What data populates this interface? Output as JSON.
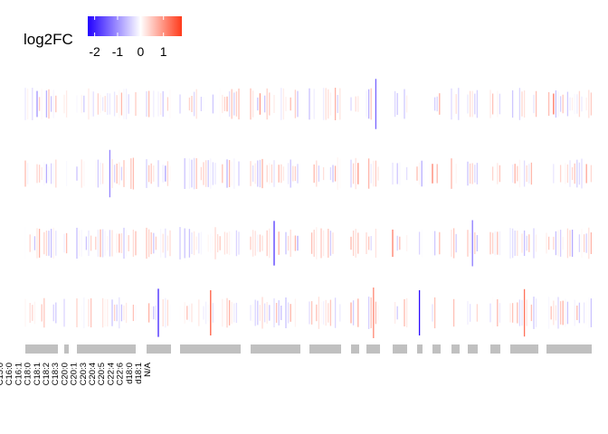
{
  "chart_data": {
    "type": "heatmap",
    "legend": {
      "title": "log2FC",
      "ticks": [
        "-2",
        "-1",
        "0",
        "1"
      ],
      "tick_values": [
        -2,
        -1,
        0,
        1
      ],
      "range": [
        -2.3,
        1.8
      ],
      "colors": {
        "low": "#2200ff",
        "mid": "#ffffff",
        "high": "#ff3a1a"
      }
    },
    "rows": 4,
    "group_labels": [
      "C15:0",
      "C16:0",
      "C16:1",
      "C18:0",
      "C18:1",
      "C18:2",
      "C18:3",
      "C20:0",
      "C20:1",
      "C20:3",
      "C20:4",
      "C20:5",
      "C22:4",
      "C22:6",
      "d18:0",
      "d18:1",
      "N/A"
    ],
    "group_bar_color": "#c0c0c0",
    "highlights": [
      {
        "row": 0,
        "group": 8,
        "value": -1.4
      },
      {
        "row": 1,
        "group": 2,
        "value": -1.1
      },
      {
        "row": 2,
        "group": 5,
        "value": -1.8
      },
      {
        "row": 2,
        "group": 13,
        "value": -1.2
      },
      {
        "row": 3,
        "group": 1,
        "value": 1.7
      },
      {
        "row": 3,
        "group": 3,
        "value": -2.0
      },
      {
        "row": 3,
        "group": 4,
        "value": 1.5
      },
      {
        "row": 3,
        "group": 8,
        "value": 1.1
      },
      {
        "row": 3,
        "group": 10,
        "value": -2.2
      },
      {
        "row": 3,
        "group": 15,
        "value": 1.3
      }
    ]
  }
}
